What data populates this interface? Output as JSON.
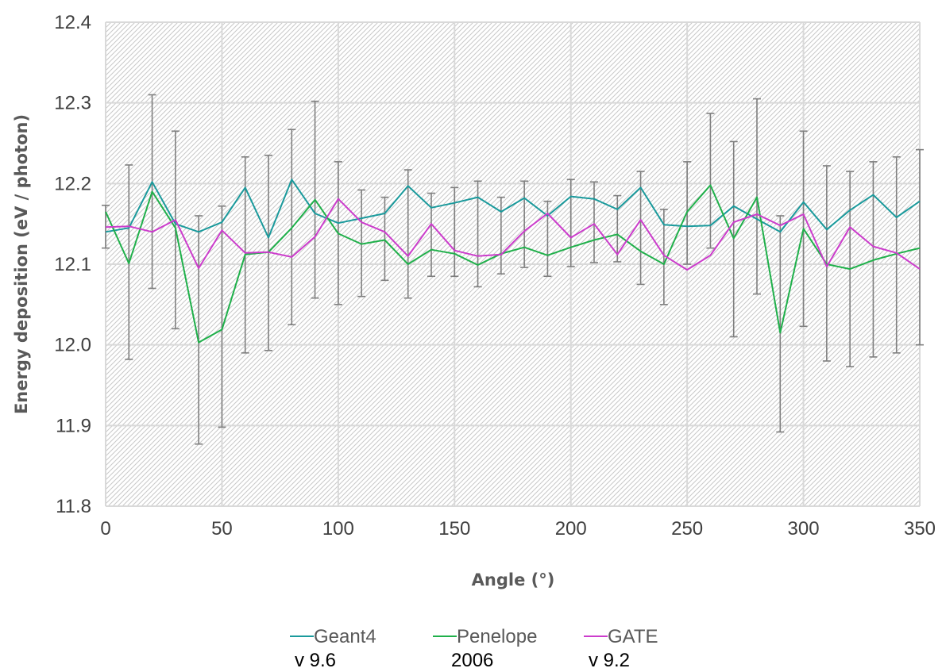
{
  "chart_data": {
    "type": "line",
    "xlabel": "Angle (°)",
    "ylabel": "Energy deposition (eV / photon)",
    "xlim": [
      0,
      350
    ],
    "ylim": [
      11.8,
      12.4
    ],
    "x_ticks": [
      "0",
      "50",
      "100",
      "150",
      "200",
      "250",
      "300",
      "350"
    ],
    "y_ticks": [
      "11.8",
      "11.9",
      "12.0",
      "12.1",
      "12.2",
      "12.3",
      "12.4"
    ],
    "grid": true,
    "legend_position": "bottom",
    "x": [
      0,
      10,
      20,
      30,
      40,
      50,
      60,
      70,
      80,
      90,
      100,
      110,
      120,
      130,
      140,
      150,
      160,
      170,
      180,
      190,
      200,
      210,
      220,
      230,
      240,
      250,
      260,
      270,
      280,
      290,
      300,
      310,
      320,
      330,
      340,
      350
    ],
    "series": [
      {
        "name": "Geant4",
        "subtitle": "v 9.6",
        "color": "#1a9a9c",
        "values": [
          12.14,
          12.145,
          12.202,
          12.15,
          12.14,
          12.152,
          12.195,
          12.133,
          12.205,
          12.163,
          12.151,
          12.157,
          12.163,
          12.197,
          12.17,
          12.176,
          12.183,
          12.165,
          12.182,
          12.16,
          12.184,
          12.181,
          12.168,
          12.195,
          12.149,
          12.147,
          12.148,
          12.172,
          12.156,
          12.14,
          12.177,
          12.143,
          12.167,
          12.186,
          12.158,
          12.178
        ]
      },
      {
        "name": "Penelope",
        "subtitle": "2006",
        "color": "#1fb04a",
        "values": [
          12.165,
          12.101,
          12.19,
          12.145,
          12.003,
          12.019,
          12.112,
          12.115,
          12.145,
          12.18,
          12.138,
          12.125,
          12.13,
          12.1,
          12.118,
          12.113,
          12.099,
          12.113,
          12.121,
          12.111,
          12.121,
          12.13,
          12.137,
          12.116,
          12.1,
          12.165,
          12.198,
          12.132,
          12.183,
          12.015,
          12.144,
          12.1,
          12.094,
          12.105,
          12.113,
          12.12
        ]
      },
      {
        "name": "GATE",
        "subtitle": "v 9.2",
        "color": "#cc3ccc",
        "values": [
          12.146,
          12.147,
          12.14,
          12.155,
          12.095,
          12.142,
          12.114,
          12.115,
          12.109,
          12.134,
          12.181,
          12.152,
          12.14,
          12.11,
          12.15,
          12.117,
          12.11,
          12.112,
          12.141,
          12.163,
          12.133,
          12.15,
          12.112,
          12.155,
          12.111,
          12.093,
          12.111,
          12.152,
          12.162,
          12.148,
          12.162,
          12.097,
          12.146,
          12.122,
          12.114,
          12.094
        ]
      }
    ],
    "error_bars": [
      {
        "x": 0,
        "low": 12.12,
        "high": 12.173
      },
      {
        "x": 10,
        "low": 11.982,
        "high": 12.223
      },
      {
        "x": 20,
        "low": 12.07,
        "high": 12.31
      },
      {
        "x": 30,
        "low": 12.02,
        "high": 12.265
      },
      {
        "x": 40,
        "low": 11.877,
        "high": 12.16
      },
      {
        "x": 50,
        "low": 11.898,
        "high": 12.172
      },
      {
        "x": 60,
        "low": 11.99,
        "high": 12.233
      },
      {
        "x": 70,
        "low": 11.993,
        "high": 12.235
      },
      {
        "x": 80,
        "low": 12.025,
        "high": 12.267
      },
      {
        "x": 90,
        "low": 12.058,
        "high": 12.302
      },
      {
        "x": 100,
        "low": 12.05,
        "high": 12.227
      },
      {
        "x": 110,
        "low": 12.06,
        "high": 12.192
      },
      {
        "x": 120,
        "low": 12.08,
        "high": 12.183
      },
      {
        "x": 130,
        "low": 12.058,
        "high": 12.217
      },
      {
        "x": 140,
        "low": 12.085,
        "high": 12.188
      },
      {
        "x": 150,
        "low": 12.085,
        "high": 12.195
      },
      {
        "x": 160,
        "low": 12.072,
        "high": 12.203
      },
      {
        "x": 170,
        "low": 12.088,
        "high": 12.183
      },
      {
        "x": 180,
        "low": 12.096,
        "high": 12.203
      },
      {
        "x": 190,
        "low": 12.085,
        "high": 12.178
      },
      {
        "x": 200,
        "low": 12.097,
        "high": 12.205
      },
      {
        "x": 210,
        "low": 12.102,
        "high": 12.202
      },
      {
        "x": 220,
        "low": 12.103,
        "high": 12.185
      },
      {
        "x": 230,
        "low": 12.075,
        "high": 12.215
      },
      {
        "x": 240,
        "low": 12.05,
        "high": 12.168
      },
      {
        "x": 250,
        "low": 12.1,
        "high": 12.227
      },
      {
        "x": 260,
        "low": 12.12,
        "high": 12.287
      },
      {
        "x": 270,
        "low": 12.01,
        "high": 12.252
      },
      {
        "x": 280,
        "low": 12.063,
        "high": 12.305
      },
      {
        "x": 290,
        "low": 11.892,
        "high": 12.16
      },
      {
        "x": 300,
        "low": 12.023,
        "high": 12.265
      },
      {
        "x": 310,
        "low": 11.98,
        "high": 12.222
      },
      {
        "x": 320,
        "low": 11.973,
        "high": 12.215
      },
      {
        "x": 330,
        "low": 11.985,
        "high": 12.227
      },
      {
        "x": 340,
        "low": 11.99,
        "high": 12.233
      },
      {
        "x": 350,
        "low": 12.0,
        "high": 12.242
      }
    ],
    "error_bar_color": "#7f7f7f",
    "grid_color": "#d9d9d9",
    "hatch_color": "#c8c8c8"
  }
}
